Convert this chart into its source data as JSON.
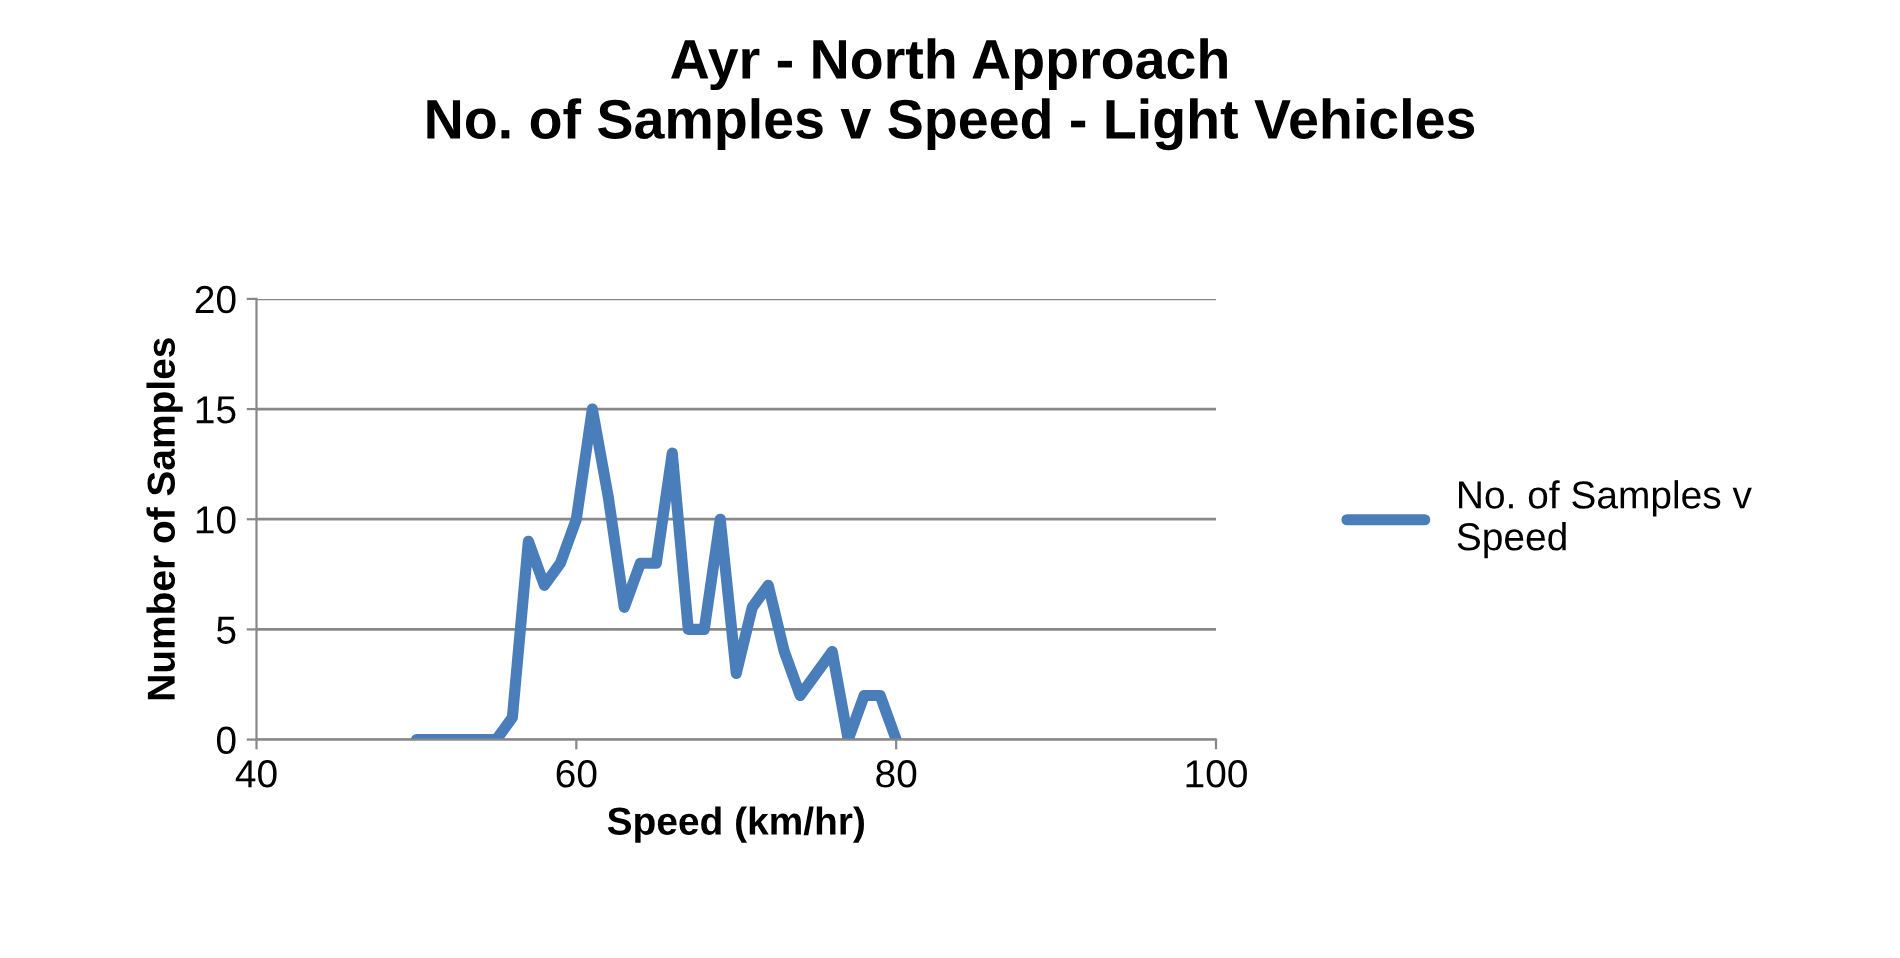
{
  "chart_data": {
    "type": "line",
    "title": "Ayr - North Approach\nNo. of Samples v Speed - Light Vehicles",
    "xlabel": "Speed (km/hr)",
    "ylabel": "Number of Samples",
    "x": [
      50,
      51,
      52,
      53,
      54,
      55,
      56,
      57,
      58,
      59,
      60,
      61,
      62,
      63,
      64,
      65,
      66,
      67,
      68,
      69,
      70,
      71,
      72,
      73,
      74,
      75,
      76,
      77,
      78,
      79,
      80
    ],
    "series": [
      {
        "name": "No. of Samples v\nSpeed",
        "color": "#4a7ebb",
        "values": [
          0,
          0,
          0,
          0,
          0,
          0,
          1,
          9,
          7,
          8,
          10,
          15,
          11,
          6,
          8,
          8,
          13,
          5,
          5,
          10,
          3,
          6,
          7,
          4,
          2,
          3,
          4,
          0,
          2,
          2,
          0
        ]
      }
    ],
    "xlim": [
      40,
      100
    ],
    "xticks": [
      40,
      60,
      80,
      100
    ],
    "ylim": [
      0,
      20
    ],
    "yticks": [
      0,
      5,
      10,
      15,
      20
    ],
    "grid": "y",
    "legend": "right",
    "marker": "none",
    "line_style": "solid"
  }
}
